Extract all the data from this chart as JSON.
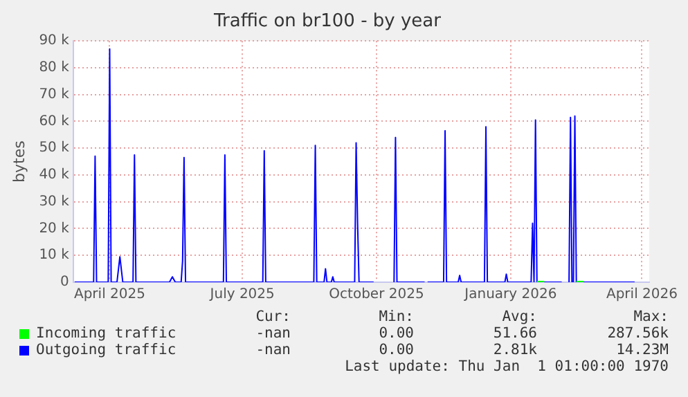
{
  "chart_data": {
    "type": "line",
    "title": "Traffic on br100 - by year",
    "ylabel": "bytes",
    "xlim": [
      "2025-03-07",
      "2026-04-06"
    ],
    "xticks": [
      {
        "value": "2025-04-01",
        "label": "April 2025"
      },
      {
        "value": "2025-07-01",
        "label": "July 2025"
      },
      {
        "value": "2025-10-01",
        "label": "October 2025"
      },
      {
        "value": "2026-01-01",
        "label": "January 2026"
      },
      {
        "value": "2026-04-01",
        "label": "April 2026"
      }
    ],
    "ylim": [
      0,
      90000
    ],
    "yticks": [
      0,
      {
        "value": 10000,
        "label": "10 k"
      },
      {
        "value": 20000,
        "label": "20 k"
      },
      {
        "value": 30000,
        "label": "30 k"
      },
      {
        "value": 40000,
        "label": "40 k"
      },
      {
        "value": 50000,
        "label": "50 k"
      },
      {
        "value": 60000,
        "label": "60 k"
      },
      {
        "value": 70000,
        "label": "70 k"
      },
      {
        "value": 80000,
        "label": "80 k"
      },
      {
        "value": 90000,
        "label": "90 k"
      }
    ],
    "grid": true,
    "legend": "bottom",
    "marker": "none",
    "line_style": "solid",
    "series": [
      {
        "name": "Incoming traffic",
        "color": "#00ff00",
        "x": [
          "2026-01-19",
          "2026-01-24",
          "2026-01-25",
          "2026-02-15",
          "2026-02-20"
        ],
        "values": [
          0,
          0,
          null,
          0,
          0
        ]
      },
      {
        "name": "Outgoing traffic",
        "color": "#0000ff",
        "x": [
          "2025-03-08",
          "2025-03-21",
          "2025-03-22",
          "2025-03-23",
          "2025-03-31",
          "2025-04-01",
          "2025-04-02",
          "2025-04-06",
          "2025-04-08",
          "2025-04-10",
          "2025-04-17",
          "2025-04-18",
          "2025-04-19",
          "2025-05-12",
          "2025-05-14",
          "2025-05-16",
          "2025-05-20",
          "2025-05-21",
          "2025-05-22",
          "2025-05-23",
          "2025-06-18",
          "2025-06-19",
          "2025-06-20",
          "2025-07-15",
          "2025-07-16",
          "2025-07-17",
          "2025-08-19",
          "2025-08-20",
          "2025-08-21",
          "2025-08-26",
          "2025-08-27",
          "2025-08-28",
          "2025-08-31",
          "2025-09-01",
          "2025-09-02",
          "2025-09-16",
          "2025-09-17",
          "2025-09-18",
          "2025-09-19",
          "2025-09-29",
          "2025-09-30",
          "2025-10-13",
          "2025-10-14",
          "2025-10-15",
          "2025-11-03",
          "2025-11-04",
          "2025-11-05",
          "2025-11-16",
          "2025-11-17",
          "2025-11-18",
          "2025-11-26",
          "2025-11-27",
          "2025-11-28",
          "2025-12-14",
          "2025-12-15",
          "2025-12-16",
          "2025-12-28",
          "2025-12-29",
          "2025-12-30",
          "2026-01-15",
          "2026-01-16",
          "2026-01-17",
          "2026-01-18",
          "2026-01-19",
          "2026-02-05",
          "2026-02-06",
          "2026-02-10",
          "2026-02-11",
          "2026-02-12",
          "2026-02-13",
          "2026-02-14",
          "2026-02-15",
          "2026-03-27"
        ],
        "values": [
          0,
          0,
          47000,
          0,
          0,
          87000,
          0,
          0,
          9500,
          0,
          0,
          47500,
          0,
          0,
          2000,
          0,
          0,
          8000,
          46500,
          0,
          0,
          47500,
          0,
          0,
          49000,
          0,
          0,
          51000,
          0,
          0,
          5000,
          0,
          0,
          2000,
          0,
          0,
          52000,
          22000,
          0,
          0,
          null,
          0,
          54000,
          0,
          0,
          null,
          0,
          0,
          56500,
          0,
          0,
          2500,
          0,
          0,
          58000,
          0,
          0,
          3000,
          0,
          0,
          22000,
          0,
          60500,
          0,
          0,
          null,
          0,
          61500,
          0,
          0,
          62000,
          0,
          0
        ]
      }
    ],
    "annotations": [
      "Cur:",
      "Min:",
      "Avg:",
      "Max:",
      "-nan",
      "0.00",
      "51.66",
      "287.56k",
      "-nan",
      "0.00",
      "2.81k",
      "14.23M",
      "Last update: Thu Jan  1 01:00:00 1970"
    ]
  }
}
